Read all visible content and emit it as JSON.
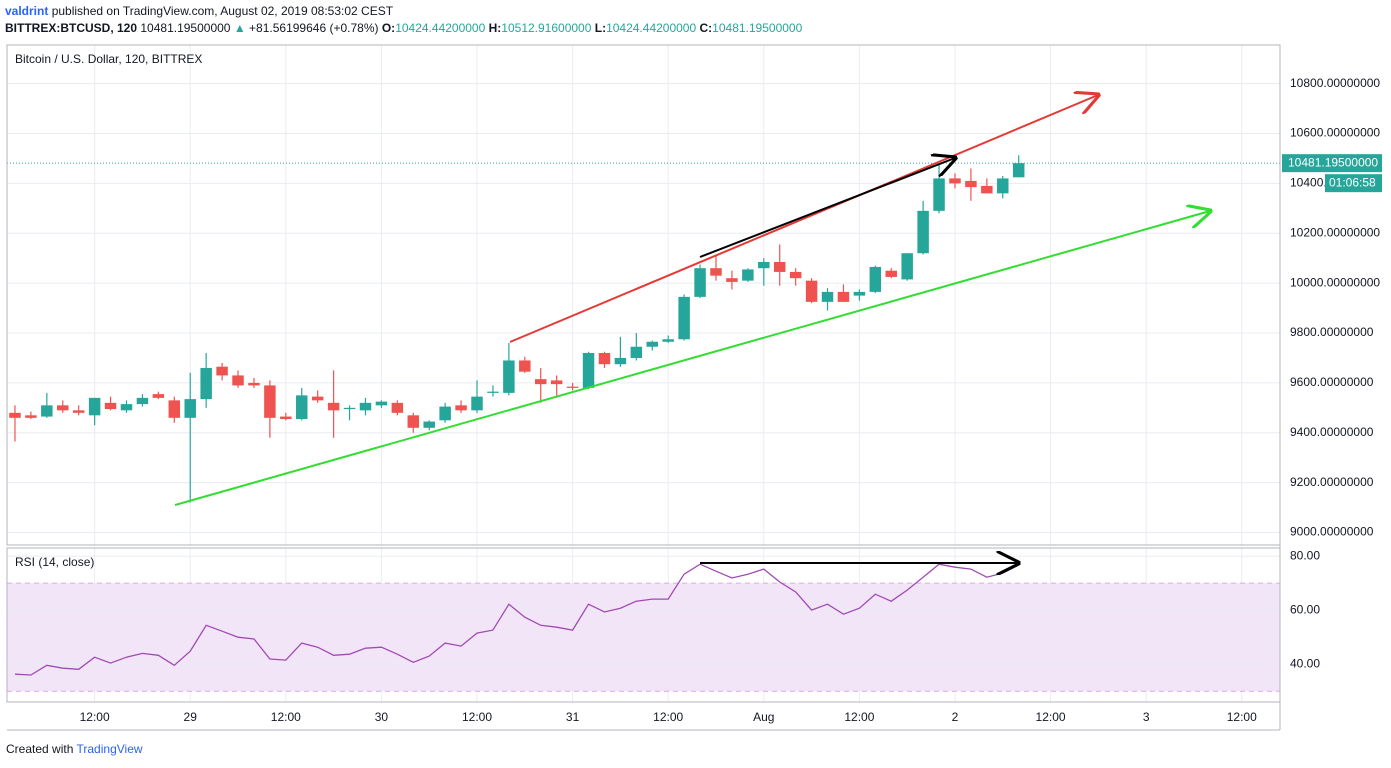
{
  "header": {
    "author": "valdrint",
    "published": "published on TradingView.com, August 02, 2019 08:53:02 CEST",
    "symbol": "BITTREX:BTCUSD, 120",
    "last": "10481.19500000",
    "arrow": "▲",
    "change": "+81.56199646 (+0.78%)",
    "o_label": "O:",
    "o": "10424.44200000",
    "h_label": "H:",
    "h": "10512.91600000",
    "l_label": "L:",
    "l": "10424.44200000",
    "c_label": "C:",
    "c": "10481.19500000"
  },
  "footer": {
    "created": "Created with",
    "brand": "TradingView"
  },
  "chart_data": [
    {
      "type": "candlestick",
      "title": "Bitcoin / U.S. Dollar, 120, BITTREX",
      "up_color": "#26a69a",
      "down_color": "#ef5350",
      "open": [
        9480,
        9470,
        9465,
        9510,
        9490,
        9470,
        9520,
        9490,
        9515,
        9555,
        9530,
        9460,
        9535,
        9665,
        9630,
        9600,
        9590,
        9465,
        9455,
        9545,
        9520,
        9495,
        9490,
        9510,
        9520,
        9470,
        9420,
        9450,
        9510,
        9490,
        9560,
        9560,
        9690,
        9615,
        9610,
        9585,
        9580,
        9720,
        9675,
        9700,
        9745,
        9765,
        9775,
        9945,
        10060,
        10020,
        10010,
        10060,
        10085,
        10045,
        10010,
        9925,
        9965,
        9950,
        9965,
        10050,
        10015,
        10120,
        10290,
        10420,
        10410,
        10390,
        10360,
        10424.442
      ],
      "high": [
        9510,
        9485,
        9560,
        9530,
        9510,
        9540,
        9545,
        9530,
        9555,
        9565,
        9545,
        9640,
        9720,
        9680,
        9650,
        9620,
        9610,
        9480,
        9580,
        9570,
        9650,
        9510,
        9540,
        9530,
        9530,
        9480,
        9450,
        9520,
        9530,
        9610,
        9590,
        9760,
        9705,
        9660,
        9630,
        9600,
        9725,
        9725,
        9785,
        9800,
        9770,
        9790,
        9955,
        10075,
        10110,
        10050,
        10060,
        10100,
        10155,
        10060,
        10020,
        9980,
        9995,
        9975,
        10070,
        10060,
        10120,
        10330,
        10480,
        10440,
        10460,
        10420,
        10430,
        10512.916
      ],
      "low": [
        9365,
        9455,
        9460,
        9480,
        9470,
        9430,
        9490,
        9480,
        9505,
        9535,
        9440,
        9120,
        9500,
        9610,
        9580,
        9580,
        9380,
        9450,
        9450,
        9520,
        9380,
        9450,
        9470,
        9500,
        9470,
        9400,
        9410,
        9440,
        9480,
        9480,
        9545,
        9550,
        9640,
        9520,
        9540,
        9570,
        9575,
        9660,
        9665,
        9690,
        9730,
        9760,
        9770,
        9940,
        10010,
        9975,
        10005,
        9990,
        9990,
        9990,
        9920,
        9890,
        9925,
        9930,
        9960,
        10020,
        10010,
        10115,
        10280,
        10380,
        10330,
        10360,
        10340,
        10424.442
      ],
      "close": [
        9460,
        9460,
        9510,
        9490,
        9480,
        9540,
        9495,
        9515,
        9540,
        9540,
        9460,
        9535,
        9660,
        9630,
        9590,
        9590,
        9460,
        9455,
        9550,
        9530,
        9490,
        9500,
        9520,
        9525,
        9480,
        9420,
        9445,
        9505,
        9490,
        9545,
        9565,
        9690,
        9645,
        9595,
        9595,
        9580,
        9720,
        9675,
        9700,
        9745,
        9765,
        9775,
        9945,
        10060,
        10030,
        10005,
        10055,
        10085,
        10045,
        10020,
        9925,
        9965,
        9925,
        9965,
        10065,
        10025,
        10120,
        10290,
        10420,
        10400,
        10385,
        10360,
        10420,
        10481.195
      ],
      "xlim": [
        -0.5,
        79.4
      ],
      "xticks": [
        {
          "value": 5,
          "label": "12:00"
        },
        {
          "value": 11,
          "label": "29"
        },
        {
          "value": 17,
          "label": "12:00"
        },
        {
          "value": 23,
          "label": "30"
        },
        {
          "value": 29,
          "label": "12:00"
        },
        {
          "value": 35,
          "label": "31"
        },
        {
          "value": 41,
          "label": "12:00"
        },
        {
          "value": 47,
          "label": "Aug"
        },
        {
          "value": 53,
          "label": "12:00"
        },
        {
          "value": 59,
          "label": "2"
        },
        {
          "value": 65,
          "label": "12:00"
        },
        {
          "value": 71,
          "label": "3"
        },
        {
          "value": 77,
          "label": "12:00"
        }
      ],
      "ylim": [
        8950,
        10955
      ],
      "yticks": [
        {
          "value": 9000,
          "label": "9000.00000000"
        },
        {
          "value": 9200,
          "label": "9200.00000000"
        },
        {
          "value": 9400,
          "label": "9400.00000000"
        },
        {
          "value": 9600,
          "label": "9600.00000000"
        },
        {
          "value": 9800,
          "label": "9800.00000000"
        },
        {
          "value": 10000,
          "label": "10000.00000000"
        },
        {
          "value": 10200,
          "label": "10200.00000000"
        },
        {
          "value": 10400,
          "label": "10400.00000000"
        },
        {
          "value": 10600,
          "label": "10600.00000000"
        },
        {
          "value": 10800,
          "label": "10800.00000000"
        }
      ],
      "last_price": {
        "value": 10481.195,
        "label": "10481.19500000"
      },
      "countdown": "01:06:58",
      "grid": true
    },
    {
      "type": "line",
      "title": "RSI (14, close)",
      "color": "#a04ab3",
      "values": [
        36.3,
        36,
        39.6,
        38.5,
        38.1,
        42.6,
        40.4,
        42.6,
        44,
        43.3,
        39.6,
        44.8,
        54.4,
        52.2,
        50,
        49.3,
        41.9,
        41.5,
        47.8,
        46.3,
        43.3,
        43.7,
        45.9,
        46.3,
        43.7,
        40.7,
        43,
        47.8,
        46.7,
        51.5,
        52.6,
        62.2,
        57.4,
        54.4,
        53.7,
        52.6,
        62.2,
        59.3,
        60.7,
        63.3,
        64.1,
        64.1,
        73.3,
        77,
        74.4,
        71.9,
        73.3,
        75.2,
        70.4,
        66.7,
        60,
        62.2,
        58.5,
        60.7,
        65.9,
        63.3,
        67.4,
        72.2,
        77,
        75.9,
        75.2,
        72.2,
        73.7,
        76.7
      ],
      "bands": [
        30,
        70
      ],
      "band_color": "#f3e5f8",
      "ylim": [
        26,
        83
      ],
      "yticks": [
        {
          "value": 40,
          "label": "40.00"
        },
        {
          "value": 60,
          "label": "60.00"
        },
        {
          "value": 80,
          "label": "80.00"
        }
      ],
      "grid": true
    }
  ]
}
